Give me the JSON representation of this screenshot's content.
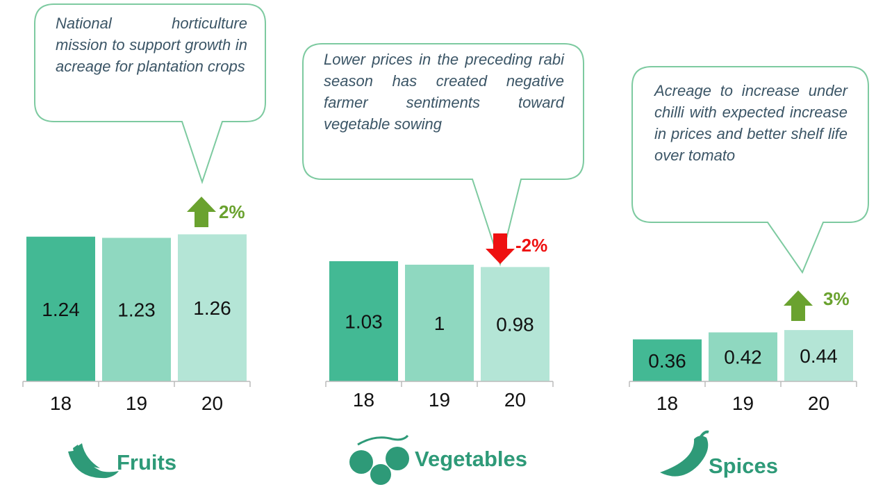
{
  "chart_data": [
    {
      "type": "bar",
      "title": "Fruits",
      "categories": [
        "18",
        "19",
        "20"
      ],
      "values": [
        1.24,
        1.23,
        1.26
      ],
      "colors": [
        "#43b994",
        "#8fd8c0",
        "#b4e5d6"
      ],
      "annotation": "National horticulture mission to support growth in acreage for plantation crops",
      "change_label": "2%",
      "change_direction": "up",
      "change_color": "#6aa22f"
    },
    {
      "type": "bar",
      "title": "Vegetables",
      "categories": [
        "18",
        "19",
        "20"
      ],
      "values": [
        1.03,
        1,
        0.98
      ],
      "colors": [
        "#43b994",
        "#8fd8c0",
        "#b4e5d6"
      ],
      "annotation": "Lower prices in the preceding rabi season has created negative farmer sentiments toward vegetable sowing",
      "change_label": "-2%",
      "change_direction": "down",
      "change_color": "#ee1111"
    },
    {
      "type": "bar",
      "title": "Spices",
      "categories": [
        "18",
        "19",
        "20"
      ],
      "values": [
        0.36,
        0.42,
        0.44
      ],
      "colors": [
        "#43b994",
        "#8fd8c0",
        "#b4e5d6"
      ],
      "annotation": "Acreage to increase under chilli with expected increase in prices and better shelf life over tomato",
      "change_label": "3%",
      "change_direction": "up",
      "change_color": "#6aa22f"
    }
  ]
}
